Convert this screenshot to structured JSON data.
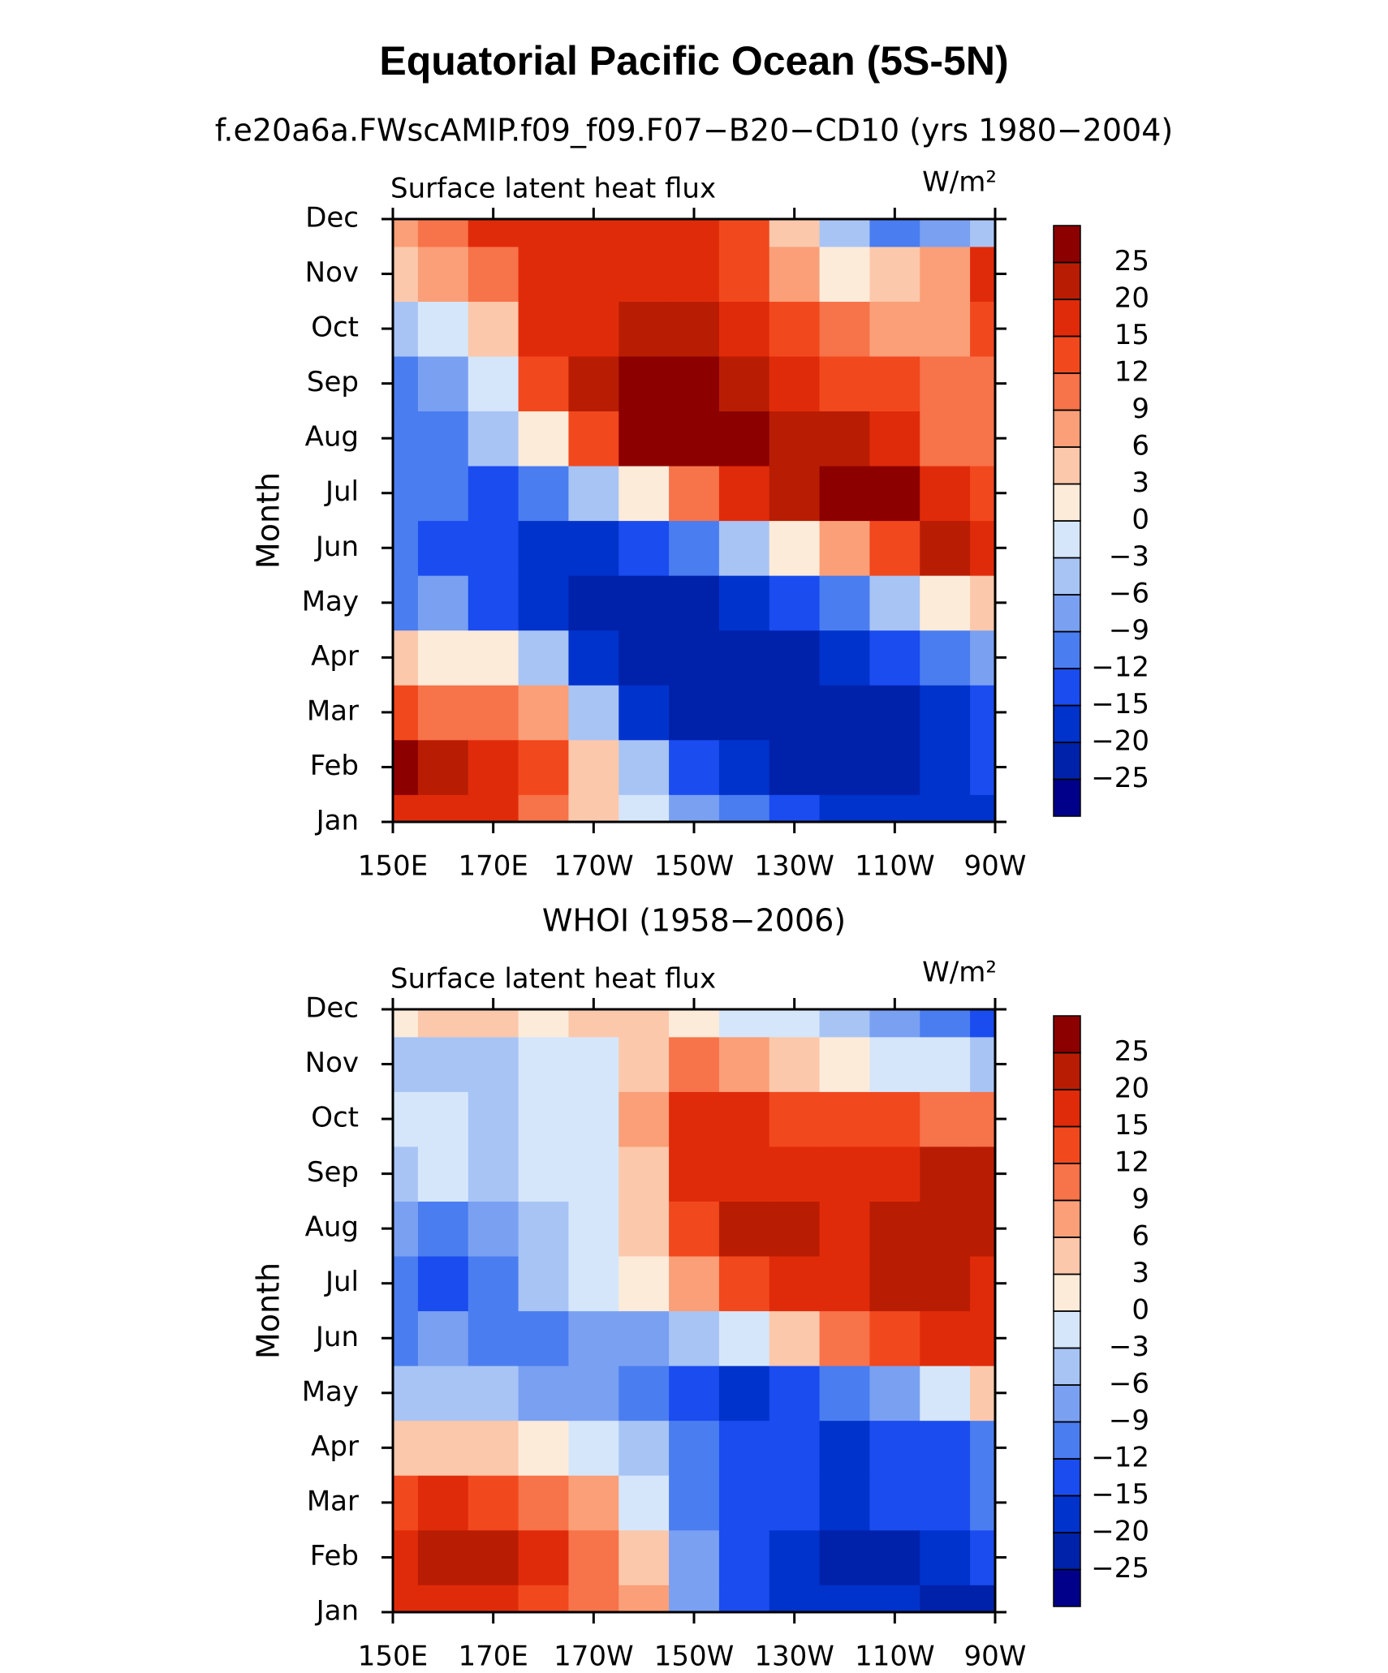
{
  "title": "Equatorial Pacific Ocean (5S-5N)",
  "chart_data": [
    {
      "type": "contour",
      "subtitle": "f.e20a6a.FWscAMIP.f09_f09.F07−B20−CD10 (yrs 1980−2004)",
      "left_label": "Surface latent heat flux",
      "units": "W/m²",
      "ylabel": "Month",
      "categories": [
        "Jan",
        "Feb",
        "Mar",
        "Apr",
        "May",
        "Jun",
        "Jul",
        "Aug",
        "Sep",
        "Oct",
        "Nov",
        "Dec"
      ],
      "x": [
        150,
        160,
        170,
        180,
        190,
        200,
        210,
        220,
        230,
        240,
        250,
        260,
        270
      ],
      "xlim": [
        150,
        270
      ],
      "xticks": [
        {
          "value": 150,
          "label": "150E"
        },
        {
          "value": 170,
          "label": "170E"
        },
        {
          "value": 190,
          "label": "170W"
        },
        {
          "value": 210,
          "label": "150W"
        },
        {
          "value": 230,
          "label": "130W"
        },
        {
          "value": 250,
          "label": "110W"
        },
        {
          "value": 270,
          "label": "90W"
        }
      ],
      "levels": [
        {
          "value": -25,
          "label": "−25"
        },
        {
          "value": -20,
          "label": "−20"
        },
        {
          "value": -15,
          "label": "−15"
        },
        {
          "value": -12,
          "label": "−12"
        },
        {
          "value": -9,
          "label": "−9"
        },
        {
          "value": -6,
          "label": "−6"
        },
        {
          "value": -3,
          "label": "−3"
        },
        0,
        3,
        6,
        9,
        12,
        15,
        20,
        25
      ],
      "colors": [
        "#00008a",
        "#0022aa",
        "#0033cc",
        "#1a4cf0",
        "#4a7df0",
        "#7aa0f2",
        "#a8c4f5",
        "#d5e6fb",
        "#fdebd9",
        "#fcc8ab",
        "#fa9f78",
        "#f7734a",
        "#f2481e",
        "#e02b0a",
        "#b81d04",
        "#8c0000"
      ],
      "z": [
        [
          15,
          15,
          15,
          9,
          3,
          -3,
          -9,
          -12,
          -15,
          -20,
          -20,
          -20,
          -20
        ],
        [
          25,
          20,
          15,
          12,
          3,
          -6,
          -15,
          -20,
          -25,
          -25,
          -25,
          -20,
          -15
        ],
        [
          12,
          9,
          9,
          6,
          -6,
          -20,
          -25,
          -25,
          -25,
          -25,
          -25,
          -20,
          -15
        ],
        [
          3,
          0,
          0,
          -6,
          -20,
          -25,
          -25,
          -25,
          -25,
          -20,
          -15,
          -12,
          -9
        ],
        [
          -12,
          -9,
          -15,
          -20,
          -25,
          -25,
          -25,
          -20,
          -15,
          -12,
          -6,
          0,
          3
        ],
        [
          -12,
          -15,
          -15,
          -20,
          -20,
          -15,
          -12,
          -6,
          0,
          6,
          12,
          20,
          15
        ],
        [
          -12,
          -12,
          -15,
          -12,
          -6,
          0,
          9,
          15,
          20,
          25,
          25,
          15,
          12
        ],
        [
          -12,
          -12,
          -6,
          0,
          12,
          25,
          25,
          25,
          20,
          20,
          15,
          9,
          9
        ],
        [
          -12,
          -9,
          -3,
          12,
          20,
          25,
          25,
          20,
          15,
          12,
          12,
          9,
          9
        ],
        [
          -6,
          -3,
          3,
          15,
          15,
          20,
          20,
          15,
          12,
          9,
          6,
          6,
          12
        ],
        [
          3,
          6,
          9,
          15,
          15,
          15,
          15,
          12,
          6,
          0,
          3,
          6,
          15
        ],
        [
          6,
          9,
          15,
          15,
          15,
          15,
          15,
          12,
          3,
          -6,
          -12,
          -9,
          -6
        ]
      ]
    },
    {
      "type": "contour",
      "subtitle": "WHOI (1958−2006)",
      "left_label": "Surface latent heat flux",
      "units": "W/m²",
      "ylabel": "Month",
      "categories": [
        "Jan",
        "Feb",
        "Mar",
        "Apr",
        "May",
        "Jun",
        "Jul",
        "Aug",
        "Sep",
        "Oct",
        "Nov",
        "Dec"
      ],
      "x": [
        150,
        160,
        170,
        180,
        190,
        200,
        210,
        220,
        230,
        240,
        250,
        260,
        270
      ],
      "xlim": [
        150,
        270
      ],
      "xticks": [
        {
          "value": 150,
          "label": "150E"
        },
        {
          "value": 170,
          "label": "170E"
        },
        {
          "value": 190,
          "label": "170W"
        },
        {
          "value": 210,
          "label": "150W"
        },
        {
          "value": 230,
          "label": "130W"
        },
        {
          "value": 250,
          "label": "110W"
        },
        {
          "value": 270,
          "label": "90W"
        }
      ],
      "levels": [
        {
          "value": -25,
          "label": "−25"
        },
        {
          "value": -20,
          "label": "−20"
        },
        {
          "value": -15,
          "label": "−15"
        },
        {
          "value": -12,
          "label": "−12"
        },
        {
          "value": -9,
          "label": "−9"
        },
        {
          "value": -6,
          "label": "−6"
        },
        {
          "value": -3,
          "label": "−3"
        },
        0,
        3,
        6,
        9,
        12,
        15,
        20,
        25
      ],
      "colors": [
        "#00008a",
        "#0022aa",
        "#0033cc",
        "#1a4cf0",
        "#4a7df0",
        "#7aa0f2",
        "#a8c4f5",
        "#d5e6fb",
        "#fdebd9",
        "#fcc8ab",
        "#fa9f78",
        "#f7734a",
        "#f2481e",
        "#e02b0a",
        "#b81d04",
        "#8c0000"
      ],
      "z": [
        [
          15,
          15,
          15,
          12,
          9,
          6,
          -9,
          -15,
          -20,
          -20,
          -20,
          -25,
          -25
        ],
        [
          15,
          20,
          20,
          15,
          9,
          3,
          -9,
          -15,
          -20,
          -25,
          -25,
          -20,
          -15
        ],
        [
          12,
          15,
          12,
          9,
          6,
          -3,
          -12,
          -15,
          -15,
          -20,
          -15,
          -15,
          -12
        ],
        [
          3,
          3,
          3,
          0,
          -3,
          -6,
          -12,
          -15,
          -15,
          -20,
          -15,
          -15,
          -12
        ],
        [
          -6,
          -6,
          -6,
          -9,
          -9,
          -12,
          -15,
          -20,
          -15,
          -12,
          -9,
          -3,
          3
        ],
        [
          -12,
          -9,
          -12,
          -12,
          -9,
          -9,
          -6,
          -3,
          3,
          9,
          12,
          15,
          15
        ],
        [
          -12,
          -15,
          -12,
          -6,
          -3,
          0,
          6,
          12,
          15,
          15,
          20,
          20,
          15
        ],
        [
          -9,
          -12,
          -9,
          -6,
          -3,
          3,
          12,
          20,
          20,
          15,
          20,
          20,
          20
        ],
        [
          -6,
          -3,
          -6,
          -3,
          -3,
          3,
          15,
          15,
          15,
          15,
          15,
          20,
          20
        ],
        [
          -3,
          -3,
          -6,
          -3,
          -3,
          6,
          15,
          15,
          12,
          12,
          12,
          9,
          9
        ],
        [
          -6,
          -6,
          -6,
          -3,
          -3,
          3,
          9,
          6,
          3,
          0,
          -3,
          -3,
          -6
        ],
        [
          0,
          3,
          3,
          0,
          3,
          3,
          0,
          -3,
          -3,
          -6,
          -9,
          -12,
          -15
        ]
      ]
    }
  ]
}
